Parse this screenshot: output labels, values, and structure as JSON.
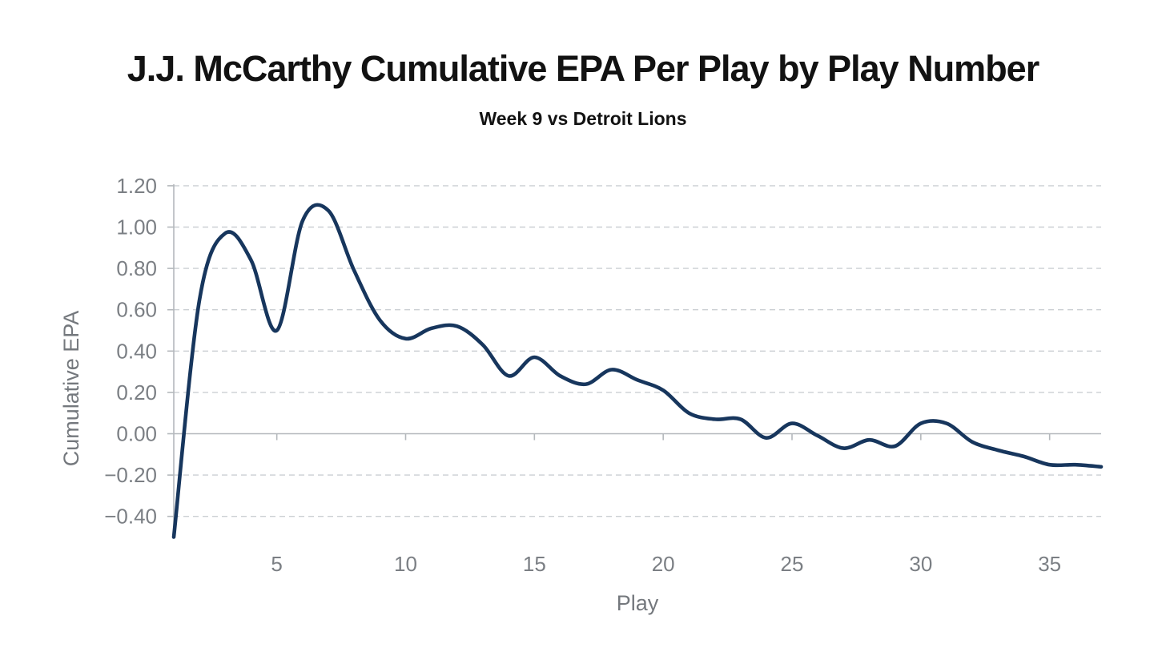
{
  "header": {
    "title": "J.J. McCarthy Cumulative EPA Per Play by Play Number",
    "subtitle": "Week 9 vs Detroit Lions"
  },
  "chart_data": {
    "type": "line",
    "title": "J.J. McCarthy Cumulative EPA Per Play by Play Number",
    "subtitle": "Week 9 vs Detroit Lions",
    "xlabel": "Play",
    "ylabel": "Cumulative EPA",
    "xlim": [
      1,
      37
    ],
    "ylim": [
      -0.5,
      1.2
    ],
    "grid": "horizontal-dashed, zero-line-solid, no-legend",
    "x": [
      1,
      2,
      3,
      4,
      5,
      6,
      7,
      8,
      9,
      10,
      11,
      12,
      13,
      14,
      15,
      16,
      17,
      18,
      19,
      20,
      21,
      22,
      23,
      24,
      25,
      26,
      27,
      28,
      29,
      30,
      31,
      32,
      33,
      34,
      35,
      36,
      37
    ],
    "series": [
      {
        "name": "Cumulative EPA",
        "values": [
          -0.5,
          0.65,
          0.97,
          0.84,
          0.5,
          1.03,
          1.08,
          0.79,
          0.55,
          0.46,
          0.51,
          0.52,
          0.43,
          0.28,
          0.37,
          0.28,
          0.24,
          0.31,
          0.26,
          0.21,
          0.1,
          0.07,
          0.07,
          -0.02,
          0.05,
          -0.01,
          -0.07,
          -0.03,
          -0.06,
          0.05,
          0.05,
          -0.04,
          -0.08,
          -0.11,
          -0.15,
          -0.15,
          -0.16
        ]
      }
    ],
    "xticks": [
      {
        "v": 5,
        "label": "5"
      },
      {
        "v": 10,
        "label": "10"
      },
      {
        "v": 15,
        "label": "15"
      },
      {
        "v": 20,
        "label": "20"
      },
      {
        "v": 25,
        "label": "25"
      },
      {
        "v": 30,
        "label": "30"
      },
      {
        "v": 35,
        "label": "35"
      }
    ],
    "yticks": [
      {
        "v": 1.2,
        "label": "1.20"
      },
      {
        "v": 1.0,
        "label": "1.00"
      },
      {
        "v": 0.8,
        "label": "0.80"
      },
      {
        "v": 0.6,
        "label": "0.60"
      },
      {
        "v": 0.4,
        "label": "0.40"
      },
      {
        "v": 0.2,
        "label": "0.20"
      },
      {
        "v": 0.0,
        "label": "0.00"
      },
      {
        "v": -0.2,
        "label": "−0.20"
      },
      {
        "v": -0.4,
        "label": "−0.40"
      }
    ]
  },
  "colors": {
    "line": "#17365d",
    "grid": "#cbcfd3",
    "axis": "#b4b8bc",
    "tick_label": "#7b7f84",
    "axis_title": "#74787d",
    "title_text": "#121212"
  }
}
